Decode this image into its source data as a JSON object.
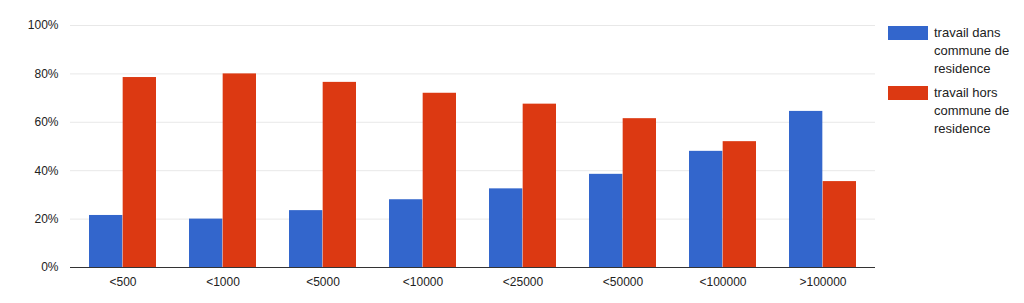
{
  "chart_data": {
    "type": "bar",
    "categories": [
      "<500",
      "<1000",
      "<5000",
      "<10000",
      "<25000",
      "<50000",
      "<100000",
      ">100000"
    ],
    "series": [
      {
        "name": "travail dans commune de residence",
        "color": "#3366cc",
        "values": [
          21.5,
          20,
          23.5,
          28,
          32.5,
          38.5,
          48,
          64.5
        ]
      },
      {
        "name": "travail hors commune de residence",
        "color": "#dc3912",
        "values": [
          78.5,
          80,
          76.5,
          72,
          67.5,
          61.5,
          52,
          35.5
        ]
      }
    ],
    "ylim": [
      0,
      100
    ],
    "yticks": [
      {
        "value": 0,
        "label": "0%"
      },
      {
        "value": 20,
        "label": "20%"
      },
      {
        "value": 40,
        "label": "40%"
      },
      {
        "value": 60,
        "label": "60%"
      },
      {
        "value": 80,
        "label": "80%"
      },
      {
        "value": 100,
        "label": "100%"
      }
    ],
    "grid": true,
    "legend": "right"
  }
}
